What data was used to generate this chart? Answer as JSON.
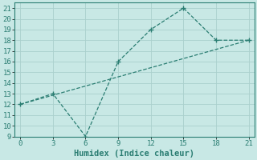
{
  "xlabel": "Humidex (Indice chaleur)",
  "line1_x": [
    0,
    3,
    6,
    9,
    12,
    15,
    18,
    21
  ],
  "line1_y": [
    12,
    13,
    9,
    16,
    19,
    21,
    18,
    18
  ],
  "line2_x": [
    0,
    3,
    6,
    9,
    12,
    15,
    18,
    21
  ],
  "line2_y": [
    12.0,
    12.857,
    13.714,
    14.571,
    15.429,
    16.286,
    17.143,
    18.0
  ],
  "line_color": "#2a7d72",
  "bg_color": "#c8e8e5",
  "grid_color": "#aacfcc",
  "xlim": [
    -0.5,
    21.5
  ],
  "ylim": [
    9,
    21.5
  ],
  "xticks": [
    0,
    3,
    6,
    9,
    12,
    15,
    18,
    21
  ],
  "yticks": [
    9,
    10,
    11,
    12,
    13,
    14,
    15,
    16,
    17,
    18,
    19,
    20,
    21
  ],
  "tick_fontsize": 6.5,
  "xlabel_fontsize": 7.5
}
